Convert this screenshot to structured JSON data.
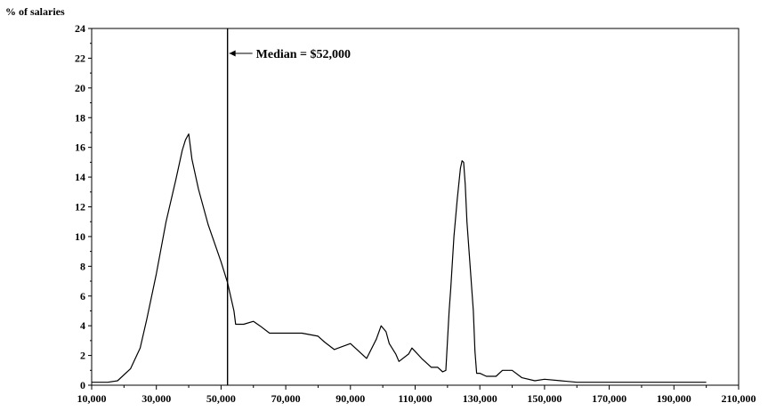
{
  "chart_data": {
    "type": "line",
    "title": "",
    "ylabel": "% of salaries",
    "xlabel": "",
    "xlim": [
      10000,
      210000
    ],
    "ylim": [
      0,
      24
    ],
    "x_ticks": [
      10000,
      30000,
      50000,
      70000,
      90000,
      110000,
      130000,
      150000,
      170000,
      190000,
      210000
    ],
    "x_tick_labels": [
      "10,000",
      "30,000",
      "50,000",
      "70,000",
      "90,000",
      "110,000",
      "130,000",
      "150,000",
      "170,000",
      "190,000",
      "210,000"
    ],
    "y_ticks": [
      0,
      2,
      4,
      6,
      8,
      10,
      12,
      14,
      16,
      18,
      20,
      22,
      24
    ],
    "y_tick_labels": [
      "0",
      "2",
      "4",
      "6",
      "8",
      "10",
      "12",
      "14",
      "16",
      "18",
      "20",
      "22",
      "24"
    ],
    "grid": false,
    "series": [
      {
        "x": [
          10000,
          15000,
          18000,
          22000,
          25000,
          27000,
          30000,
          33000,
          36000,
          38000,
          39000,
          40000,
          41000,
          43000,
          46000,
          50000,
          52000,
          54000,
          54500,
          57000,
          60000,
          62000,
          65000,
          70000,
          75000,
          80000,
          82000,
          85000,
          90000,
          95000,
          98000,
          99500,
          101000,
          102000,
          104000,
          105000,
          108000,
          109000,
          112000,
          115000,
          117000,
          118500,
          119500,
          120500,
          121000,
          122000,
          123000,
          124000,
          124500,
          125000,
          125500,
          126000,
          127000,
          128000,
          128500,
          129000,
          130000,
          132000,
          135000,
          137000,
          140000,
          143000,
          147000,
          150000,
          155000,
          160000,
          170000,
          180000,
          190000,
          200000
        ],
        "y": [
          0.2,
          0.2,
          0.3,
          1.1,
          2.5,
          4.4,
          7.5,
          11.0,
          13.8,
          15.8,
          16.5,
          16.9,
          15.2,
          13.2,
          10.8,
          8.3,
          6.9,
          5.0,
          4.1,
          4.1,
          4.3,
          4.0,
          3.5,
          3.5,
          3.5,
          3.3,
          2.9,
          2.4,
          2.8,
          1.8,
          3.1,
          4.0,
          3.6,
          2.8,
          2.1,
          1.6,
          2.1,
          2.5,
          1.8,
          1.2,
          1.2,
          0.9,
          1.0,
          5.0,
          6.5,
          10.0,
          12.5,
          14.6,
          15.1,
          15.0,
          13.5,
          11.0,
          8.0,
          5.0,
          2.3,
          0.8,
          0.8,
          0.6,
          0.6,
          1.0,
          1.0,
          0.5,
          0.3,
          0.4,
          0.3,
          0.2,
          0.2,
          0.2,
          0.2,
          0.2
        ]
      }
    ],
    "annotations": [
      {
        "text": "Median = $52,000",
        "x": 52000,
        "type": "vertical-line-with-arrow"
      }
    ]
  }
}
